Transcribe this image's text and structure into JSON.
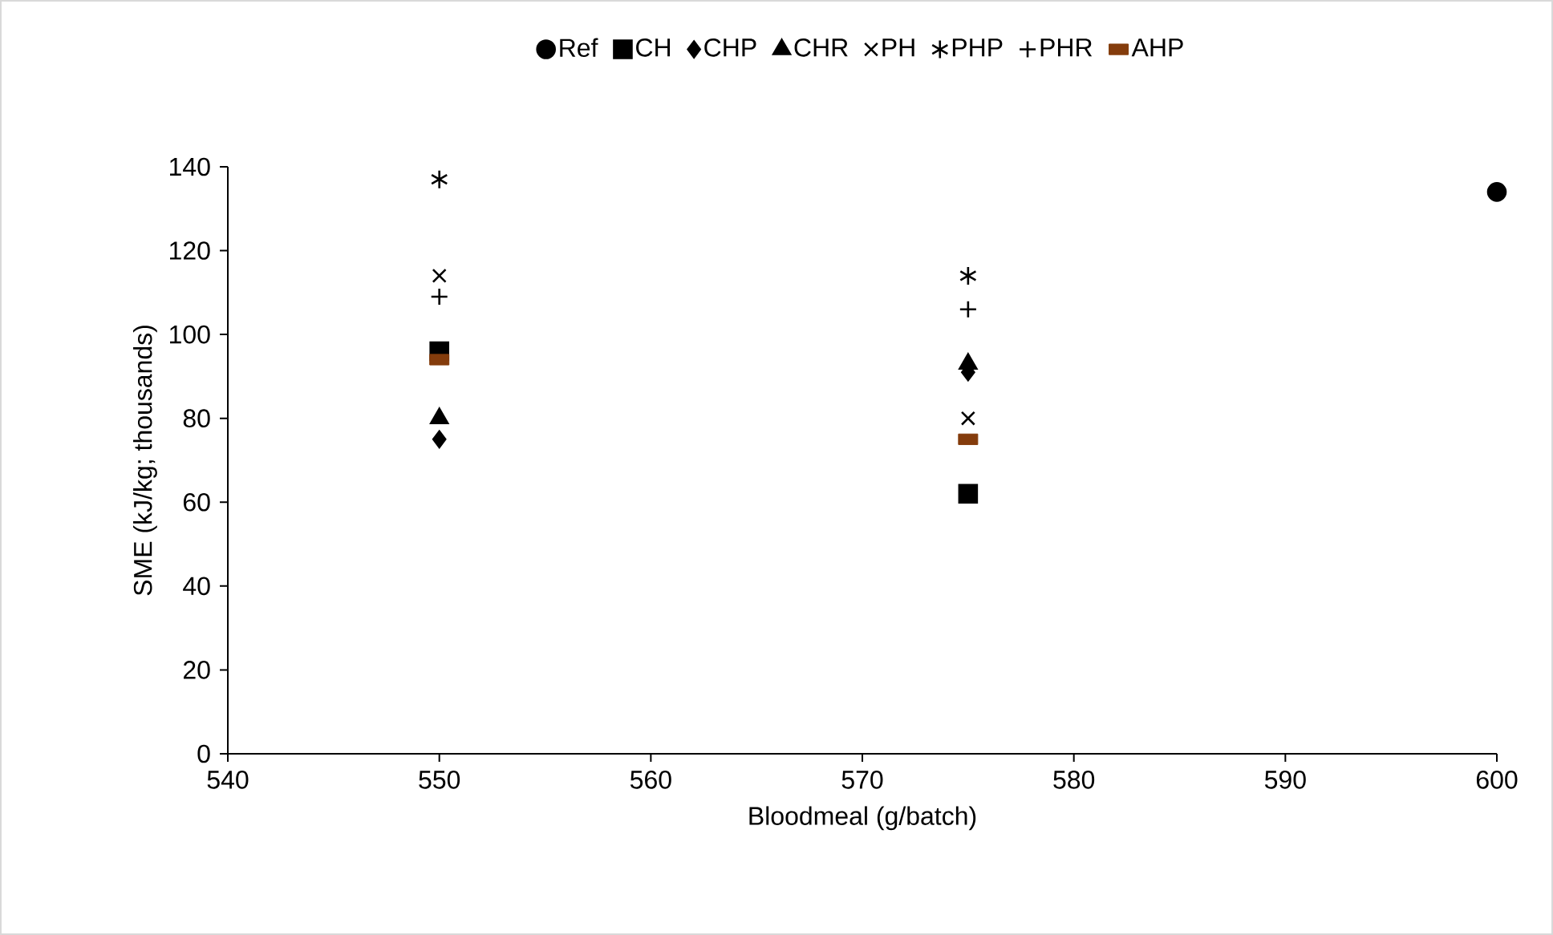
{
  "chart_data": {
    "type": "scatter",
    "xlabel": "Bloodmeal (g/batch)",
    "ylabel": "SME (kJ/kg; thousands)",
    "xlim": [
      540,
      600
    ],
    "xticks": [
      540,
      550,
      560,
      570,
      580,
      590,
      600
    ],
    "ylim": [
      0,
      140
    ],
    "yticks": [
      0,
      20,
      40,
      60,
      80,
      100,
      120,
      140
    ],
    "grid": false,
    "legend": "top",
    "series": [
      {
        "name": "Ref",
        "color": "#000000",
        "marker": "circle",
        "x": [
          600
        ],
        "values": [
          134
        ]
      },
      {
        "name": "CH",
        "color": "#000000",
        "marker": "square",
        "x": [
          550,
          575
        ],
        "values": [
          96,
          62
        ]
      },
      {
        "name": "CHP",
        "color": "#000000",
        "marker": "diamond",
        "x": [
          550,
          575
        ],
        "values": [
          75,
          91
        ]
      },
      {
        "name": "CHR",
        "color": "#000000",
        "marker": "triangle",
        "x": [
          550,
          575
        ],
        "values": [
          80,
          93
        ]
      },
      {
        "name": "PH",
        "color": "#000000",
        "marker": "cross",
        "x": [
          550,
          575
        ],
        "values": [
          114,
          80
        ]
      },
      {
        "name": "PHP",
        "color": "#000000",
        "x": [
          550,
          575
        ],
        "values": [
          137,
          114
        ]
      },
      {
        "name": "PHR",
        "color": "#000000",
        "marker": "plus",
        "x": [
          550,
          575
        ],
        "values": [
          109,
          106
        ]
      },
      {
        "name": "AHP",
        "color": "#843c0c",
        "x": [
          550,
          575
        ],
        "values": [
          94,
          75
        ]
      }
    ]
  }
}
